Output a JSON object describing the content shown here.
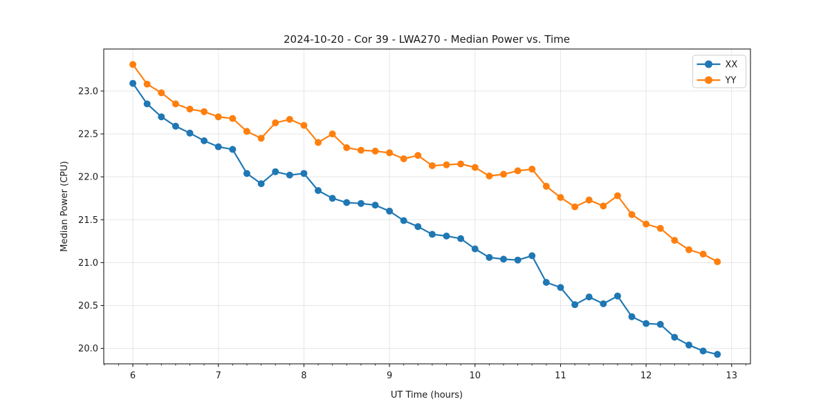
{
  "chart_data": {
    "type": "line",
    "title": "2024-10-20 - Cor 39 - LWA270 - Median Power vs. Time",
    "xlabel": "UT Time (hours)",
    "ylabel": "Median Power (CPU)",
    "xlim": [
      5.66,
      13.22
    ],
    "ylim": [
      19.82,
      23.49
    ],
    "xticks": [
      6,
      7,
      8,
      9,
      10,
      11,
      12,
      13
    ],
    "yticks": [
      20.0,
      20.5,
      21.0,
      21.5,
      22.0,
      22.5,
      23.0
    ],
    "x_minor_step": 0.166667,
    "grid": true,
    "grid_color": "#e5e5e5",
    "frame_color": "#1a1a1a",
    "legend_position": "upper right",
    "x": [
      6.0,
      6.1667,
      6.3333,
      6.5,
      6.6667,
      6.8333,
      7.0,
      7.1667,
      7.3333,
      7.5,
      7.6667,
      7.8333,
      8.0,
      8.1667,
      8.3333,
      8.5,
      8.6667,
      8.8333,
      9.0,
      9.1667,
      9.3333,
      9.5,
      9.6667,
      9.8333,
      10.0,
      10.1667,
      10.3333,
      10.5,
      10.6667,
      10.8333,
      11.0,
      11.1667,
      11.3333,
      11.5,
      11.6667,
      11.8333,
      12.0,
      12.1667,
      12.3333,
      12.5,
      12.6667,
      12.8333
    ],
    "series": [
      {
        "name": "XX",
        "color": "#1f77b4",
        "values": [
          23.09,
          22.85,
          22.7,
          22.59,
          22.51,
          22.42,
          22.35,
          22.32,
          22.04,
          21.92,
          22.06,
          22.02,
          22.04,
          21.84,
          21.75,
          21.7,
          21.69,
          21.67,
          21.6,
          21.49,
          21.42,
          21.33,
          21.31,
          21.28,
          21.16,
          21.06,
          21.04,
          21.03,
          21.08,
          20.77,
          20.71,
          20.51,
          20.6,
          20.52,
          20.61,
          20.37,
          20.29,
          20.28,
          20.13,
          20.04,
          19.97,
          19.93
        ]
      },
      {
        "name": "YY",
        "color": "#ff7f0e",
        "values": [
          23.31,
          23.08,
          22.98,
          22.85,
          22.79,
          22.76,
          22.7,
          22.68,
          22.53,
          22.45,
          22.63,
          22.67,
          22.6,
          22.4,
          22.5,
          22.34,
          22.31,
          22.3,
          22.28,
          22.21,
          22.25,
          22.13,
          22.14,
          22.15,
          22.11,
          22.01,
          22.03,
          22.07,
          22.09,
          21.89,
          21.76,
          21.65,
          21.73,
          21.66,
          21.78,
          21.56,
          21.45,
          21.4,
          21.26,
          21.15,
          21.1,
          21.01
        ]
      }
    ]
  }
}
